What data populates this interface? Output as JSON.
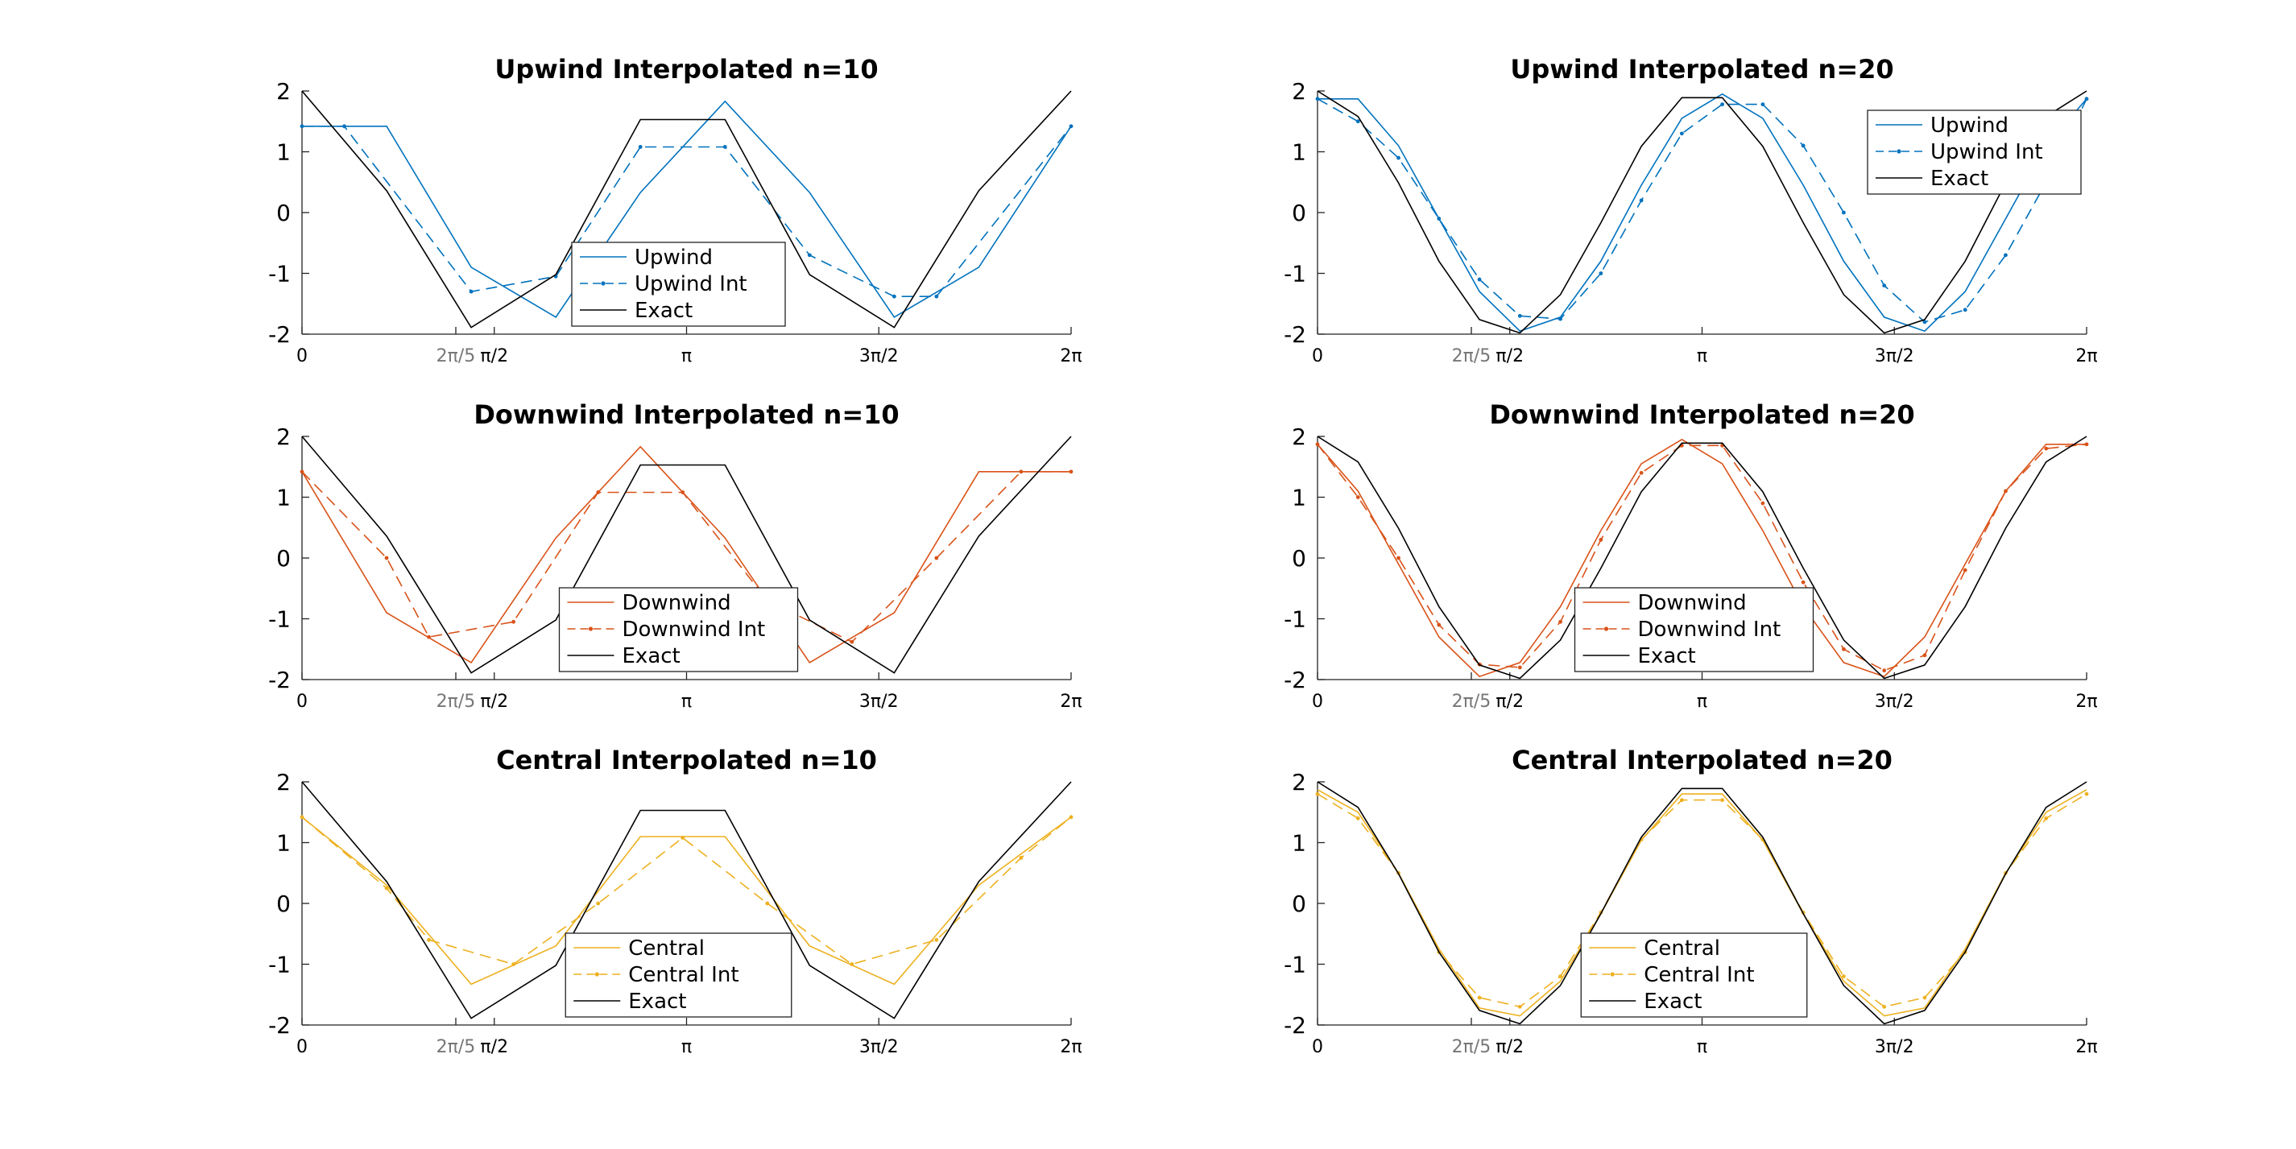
{
  "chart_data": [
    {
      "type": "line",
      "title": "Upwind Interpolated n=10",
      "xlim": [
        0,
        6.2832
      ],
      "ylim": [
        -2,
        2
      ],
      "xticks": [
        {
          "value": 0,
          "label": "0"
        },
        {
          "value": 1.2566,
          "label": "2π/5",
          "grey": true
        },
        {
          "value": 1.5708,
          "label": "π/2"
        },
        {
          "value": 3.1416,
          "label": "π"
        },
        {
          "value": 4.7124,
          "label": "3π/2"
        },
        {
          "value": 6.2832,
          "label": "2π"
        }
      ],
      "yticks": [
        {
          "value": 2,
          "label": "2"
        },
        {
          "value": 1,
          "label": "1"
        },
        {
          "value": 0,
          "label": "0"
        },
        {
          "value": -1,
          "label": "-1"
        },
        {
          "value": -2,
          "label": "-2"
        }
      ],
      "legend": {
        "position": "center-bottom"
      },
      "series": [
        {
          "name": "Upwind",
          "color": "#0072BD",
          "style": "solid",
          "x": [
            0,
            0.6283,
            0.6912,
            1.3823,
            2.0735,
            2.7646,
            3.4558,
            4.1469,
            4.8381,
            5.5292,
            6.2832
          ],
          "y": [
            1.42,
            1.42,
            1.42,
            -0.9,
            -1.72,
            0.33,
            1.83,
            0.33,
            -1.72,
            -0.9,
            1.42
          ]
        },
        {
          "name": "Upwind Int",
          "color": "#0072BD",
          "style": "dash-dot",
          "x": [
            0,
            0.3456,
            1.3823,
            2.0735,
            2.7646,
            3.4558,
            4.1469,
            4.8381,
            5.1836,
            6.2832
          ],
          "y": [
            1.42,
            1.42,
            -1.3,
            -1.05,
            1.08,
            1.08,
            -0.7,
            -1.38,
            -1.38,
            1.42
          ]
        },
        {
          "name": "Exact",
          "color": "#000000",
          "style": "solid",
          "x": [
            0,
            0.6912,
            1.3823,
            2.0735,
            2.7646,
            3.4558,
            4.1469,
            4.8381,
            5.5292,
            6.2832
          ],
          "y": [
            2.0,
            0.36,
            -1.89,
            -1.02,
            1.53,
            1.53,
            -1.02,
            -1.89,
            0.36,
            2.0
          ]
        }
      ]
    },
    {
      "type": "line",
      "title": "Upwind Interpolated n=20",
      "xlim": [
        0,
        6.2832
      ],
      "ylim": [
        -2,
        2
      ],
      "xticks": [
        {
          "value": 0,
          "label": "0"
        },
        {
          "value": 1.2566,
          "label": "2π/5",
          "grey": true
        },
        {
          "value": 1.5708,
          "label": "π/2"
        },
        {
          "value": 3.1416,
          "label": "π"
        },
        {
          "value": 4.7124,
          "label": "3π/2"
        },
        {
          "value": 6.2832,
          "label": "2π"
        }
      ],
      "yticks": [
        {
          "value": 2,
          "label": "2"
        },
        {
          "value": 1,
          "label": "1"
        },
        {
          "value": 0,
          "label": "0"
        },
        {
          "value": -1,
          "label": "-1"
        },
        {
          "value": -2,
          "label": "-2"
        }
      ],
      "legend": {
        "position": "top-right"
      },
      "series": [
        {
          "name": "Upwind",
          "color": "#0072BD",
          "style": "solid",
          "x": [
            0,
            0.3307,
            0.6614,
            0.9921,
            1.3228,
            1.6535,
            1.9842,
            2.3149,
            2.6456,
            2.9763,
            3.3069,
            3.6376,
            3.9683,
            4.299,
            4.6297,
            4.9604,
            5.2911,
            5.6218,
            5.9525,
            6.2832
          ],
          "y": [
            1.87,
            1.87,
            1.1,
            -0.1,
            -1.3,
            -1.95,
            -1.72,
            -0.8,
            0.45,
            1.55,
            1.95,
            1.55,
            0.45,
            -0.8,
            -1.72,
            -1.95,
            -1.3,
            -0.1,
            1.1,
            1.87
          ]
        },
        {
          "name": "Upwind Int",
          "color": "#0072BD",
          "style": "dash-dot",
          "x": [
            0,
            0.3307,
            0.6614,
            0.9921,
            1.3228,
            1.6535,
            1.9842,
            2.3149,
            2.6456,
            2.9763,
            3.3069,
            3.6376,
            3.9683,
            4.299,
            4.6297,
            4.9604,
            5.2911,
            5.6218,
            5.9525,
            6.2832
          ],
          "y": [
            1.87,
            1.5,
            0.9,
            -0.1,
            -1.1,
            -1.7,
            -1.75,
            -1.0,
            0.2,
            1.3,
            1.78,
            1.78,
            1.1,
            0.0,
            -1.2,
            -1.8,
            -1.6,
            -0.7,
            0.5,
            1.87
          ]
        },
        {
          "name": "Exact",
          "color": "#000000",
          "style": "solid",
          "x": [
            0,
            0.3307,
            0.6614,
            0.9921,
            1.3228,
            1.6535,
            1.9842,
            2.3149,
            2.6456,
            2.9763,
            3.3069,
            3.6376,
            3.9683,
            4.299,
            4.6297,
            4.9604,
            5.2911,
            5.6218,
            5.9525,
            6.2832
          ],
          "y": [
            2.0,
            1.58,
            0.49,
            -0.8,
            -1.76,
            -1.98,
            -1.35,
            -0.17,
            1.09,
            1.89,
            1.89,
            1.09,
            -0.17,
            -1.35,
            -1.98,
            -1.76,
            -0.8,
            0.49,
            1.58,
            2.0
          ]
        }
      ]
    },
    {
      "type": "line",
      "title": "Downwind Interpolated n=10",
      "xlim": [
        0,
        6.2832
      ],
      "ylim": [
        -2,
        2
      ],
      "xticks": [
        {
          "value": 0,
          "label": "0"
        },
        {
          "value": 1.2566,
          "label": "2π/5",
          "grey": true
        },
        {
          "value": 1.5708,
          "label": "π/2"
        },
        {
          "value": 3.1416,
          "label": "π"
        },
        {
          "value": 4.7124,
          "label": "3π/2"
        },
        {
          "value": 6.2832,
          "label": "2π"
        }
      ],
      "yticks": [
        {
          "value": 2,
          "label": "2"
        },
        {
          "value": 1,
          "label": "1"
        },
        {
          "value": 0,
          "label": "0"
        },
        {
          "value": -1,
          "label": "-1"
        },
        {
          "value": -2,
          "label": "-2"
        }
      ],
      "legend": {
        "position": "center-bottom"
      },
      "series": [
        {
          "name": "Downwind",
          "color": "#D95319",
          "style": "solid",
          "x": [
            0,
            0.6912,
            1.3823,
            2.0735,
            2.7646,
            3.4558,
            4.1469,
            4.8381,
            5.5292,
            6.2832
          ],
          "y": [
            1.42,
            -0.9,
            -1.72,
            0.33,
            1.83,
            0.33,
            -1.72,
            -0.9,
            1.42,
            1.42
          ]
        },
        {
          "name": "Downwind Int",
          "color": "#D95319",
          "style": "dash-dot",
          "x": [
            0,
            0.6912,
            1.0367,
            1.7279,
            2.4191,
            3.1102,
            3.8014,
            4.4925,
            5.1836,
            5.8748,
            6.2832
          ],
          "y": [
            1.42,
            0.0,
            -1.3,
            -1.05,
            1.08,
            1.08,
            -0.7,
            -1.38,
            0.0,
            1.42,
            1.42
          ]
        },
        {
          "name": "Exact",
          "color": "#000000",
          "style": "solid",
          "x": [
            0,
            0.6912,
            1.3823,
            2.0735,
            2.7646,
            3.4558,
            4.1469,
            4.8381,
            5.5292,
            6.2832
          ],
          "y": [
            2.0,
            0.36,
            -1.89,
            -1.02,
            1.53,
            1.53,
            -1.02,
            -1.89,
            0.36,
            2.0
          ]
        }
      ]
    },
    {
      "type": "line",
      "title": "Downwind Interpolated n=20",
      "xlim": [
        0,
        6.2832
      ],
      "ylim": [
        -2,
        2
      ],
      "xticks": [
        {
          "value": 0,
          "label": "0"
        },
        {
          "value": 1.2566,
          "label": "2π/5",
          "grey": true
        },
        {
          "value": 1.5708,
          "label": "π/2"
        },
        {
          "value": 3.1416,
          "label": "π"
        },
        {
          "value": 4.7124,
          "label": "3π/2"
        },
        {
          "value": 6.2832,
          "label": "2π"
        }
      ],
      "yticks": [
        {
          "value": 2,
          "label": "2"
        },
        {
          "value": 1,
          "label": "1"
        },
        {
          "value": 0,
          "label": "0"
        },
        {
          "value": -1,
          "label": "-1"
        },
        {
          "value": -2,
          "label": "-2"
        }
      ],
      "legend": {
        "position": "center-bottom"
      },
      "series": [
        {
          "name": "Downwind",
          "color": "#D95319",
          "style": "solid",
          "x": [
            0,
            0.3307,
            0.6614,
            0.9921,
            1.3228,
            1.6535,
            1.9842,
            2.3149,
            2.6456,
            2.9763,
            3.3069,
            3.6376,
            3.9683,
            4.299,
            4.6297,
            4.9604,
            5.2911,
            5.6218,
            5.9525,
            6.2832
          ],
          "y": [
            1.87,
            1.1,
            -0.1,
            -1.3,
            -1.95,
            -1.72,
            -0.8,
            0.45,
            1.55,
            1.95,
            1.55,
            0.45,
            -0.8,
            -1.72,
            -1.95,
            -1.3,
            -0.1,
            1.1,
            1.87,
            1.87
          ]
        },
        {
          "name": "Downwind Int",
          "color": "#D95319",
          "style": "dash-dot",
          "x": [
            0,
            0.3307,
            0.6614,
            0.9921,
            1.3228,
            1.6535,
            1.9842,
            2.3149,
            2.6456,
            2.9763,
            3.3069,
            3.6376,
            3.9683,
            4.299,
            4.6297,
            4.9604,
            5.2911,
            5.6218,
            5.9525,
            6.2832
          ],
          "y": [
            1.87,
            1.0,
            0.0,
            -1.1,
            -1.75,
            -1.8,
            -1.05,
            0.3,
            1.4,
            1.85,
            1.85,
            0.9,
            -0.4,
            -1.5,
            -1.85,
            -1.6,
            -0.2,
            1.1,
            1.8,
            1.87
          ]
        },
        {
          "name": "Exact",
          "color": "#000000",
          "style": "solid",
          "x": [
            0,
            0.3307,
            0.6614,
            0.9921,
            1.3228,
            1.6535,
            1.9842,
            2.3149,
            2.6456,
            2.9763,
            3.3069,
            3.6376,
            3.9683,
            4.299,
            4.6297,
            4.9604,
            5.2911,
            5.6218,
            5.9525,
            6.2832
          ],
          "y": [
            2.0,
            1.58,
            0.49,
            -0.8,
            -1.76,
            -1.98,
            -1.35,
            -0.17,
            1.09,
            1.89,
            1.89,
            1.09,
            -0.17,
            -1.35,
            -1.98,
            -1.76,
            -0.8,
            0.49,
            1.58,
            2.0
          ]
        }
      ]
    },
    {
      "type": "line",
      "title": "Central Interpolated n=10",
      "xlim": [
        0,
        6.2832
      ],
      "ylim": [
        -2,
        2
      ],
      "xticks": [
        {
          "value": 0,
          "label": "0"
        },
        {
          "value": 1.2566,
          "label": "2π/5",
          "grey": true
        },
        {
          "value": 1.5708,
          "label": "π/2"
        },
        {
          "value": 3.1416,
          "label": "π"
        },
        {
          "value": 4.7124,
          "label": "3π/2"
        },
        {
          "value": 6.2832,
          "label": "2π"
        }
      ],
      "yticks": [
        {
          "value": 2,
          "label": "2"
        },
        {
          "value": 1,
          "label": "1"
        },
        {
          "value": 0,
          "label": "0"
        },
        {
          "value": -1,
          "label": "-1"
        },
        {
          "value": -2,
          "label": "-2"
        }
      ],
      "legend": {
        "position": "center-bottom"
      },
      "series": [
        {
          "name": "Central",
          "color": "#EDB120",
          "style": "solid",
          "x": [
            0,
            0.6912,
            1.3823,
            2.0735,
            2.7646,
            3.4558,
            4.1469,
            4.8381,
            5.5292,
            6.2832
          ],
          "y": [
            1.42,
            0.3,
            -1.33,
            -0.7,
            1.1,
            1.1,
            -0.7,
            -1.33,
            0.3,
            1.42
          ]
        },
        {
          "name": "Central Int",
          "color": "#EDB120",
          "style": "dash-dot",
          "x": [
            0,
            0.6912,
            1.0367,
            1.7279,
            2.4191,
            3.1102,
            3.8014,
            4.4925,
            5.1836,
            5.8748,
            6.2832
          ],
          "y": [
            1.42,
            0.25,
            -0.6,
            -1.0,
            0.0,
            1.08,
            0.0,
            -1.0,
            -0.6,
            0.75,
            1.42
          ]
        },
        {
          "name": "Exact",
          "color": "#000000",
          "style": "solid",
          "x": [
            0,
            0.6912,
            1.3823,
            2.0735,
            2.7646,
            3.4558,
            4.1469,
            4.8381,
            5.5292,
            6.2832
          ],
          "y": [
            2.0,
            0.36,
            -1.89,
            -1.02,
            1.53,
            1.53,
            -1.02,
            -1.89,
            0.36,
            2.0
          ]
        }
      ]
    },
    {
      "type": "line",
      "title": "Central Interpolated n=20",
      "xlim": [
        0,
        6.2832
      ],
      "ylim": [
        -2,
        2
      ],
      "xticks": [
        {
          "value": 0,
          "label": "0"
        },
        {
          "value": 1.2566,
          "label": "2π/5",
          "grey": true
        },
        {
          "value": 1.5708,
          "label": "π/2"
        },
        {
          "value": 3.1416,
          "label": "π"
        },
        {
          "value": 4.7124,
          "label": "3π/2"
        },
        {
          "value": 6.2832,
          "label": "2π"
        }
      ],
      "yticks": [
        {
          "value": 2,
          "label": "2"
        },
        {
          "value": 1,
          "label": "1"
        },
        {
          "value": 0,
          "label": "0"
        },
        {
          "value": -1,
          "label": "-1"
        },
        {
          "value": -2,
          "label": "-2"
        }
      ],
      "legend": {
        "position": "center-bottom"
      },
      "series": [
        {
          "name": "Central",
          "color": "#EDB120",
          "style": "solid",
          "x": [
            0,
            0.3307,
            0.6614,
            0.9921,
            1.3228,
            1.6535,
            1.9842,
            2.3149,
            2.6456,
            2.9763,
            3.3069,
            3.6376,
            3.9683,
            4.299,
            4.6297,
            4.9604,
            5.2911,
            5.6218,
            5.9525,
            6.2832
          ],
          "y": [
            1.87,
            1.5,
            0.5,
            -0.75,
            -1.72,
            -1.85,
            -1.28,
            -0.17,
            1.04,
            1.8,
            1.8,
            1.04,
            -0.17,
            -1.28,
            -1.85,
            -1.72,
            -0.75,
            0.5,
            1.5,
            1.87
          ]
        },
        {
          "name": "Central Int",
          "color": "#EDB120",
          "style": "dash-dot",
          "x": [
            0,
            0.3307,
            0.6614,
            0.9921,
            1.3228,
            1.6535,
            1.9842,
            2.3149,
            2.6456,
            2.9763,
            3.3069,
            3.6376,
            3.9683,
            4.299,
            4.6297,
            4.9604,
            5.2911,
            5.6218,
            5.9525,
            6.2832
          ],
          "y": [
            1.8,
            1.4,
            0.5,
            -0.8,
            -1.55,
            -1.7,
            -1.2,
            -0.15,
            1.05,
            1.7,
            1.7,
            1.05,
            -0.15,
            -1.2,
            -1.7,
            -1.55,
            -0.8,
            0.5,
            1.4,
            1.8
          ]
        },
        {
          "name": "Exact",
          "color": "#000000",
          "style": "solid",
          "x": [
            0,
            0.3307,
            0.6614,
            0.9921,
            1.3228,
            1.6535,
            1.9842,
            2.3149,
            2.6456,
            2.9763,
            3.3069,
            3.6376,
            3.9683,
            4.299,
            4.6297,
            4.9604,
            5.2911,
            5.6218,
            5.9525,
            6.2832
          ],
          "y": [
            2.0,
            1.58,
            0.49,
            -0.8,
            -1.76,
            -1.98,
            -1.35,
            -0.17,
            1.09,
            1.89,
            1.89,
            1.09,
            -0.17,
            -1.35,
            -1.98,
            -1.76,
            -0.8,
            0.49,
            1.58,
            2.0
          ]
        }
      ]
    }
  ]
}
